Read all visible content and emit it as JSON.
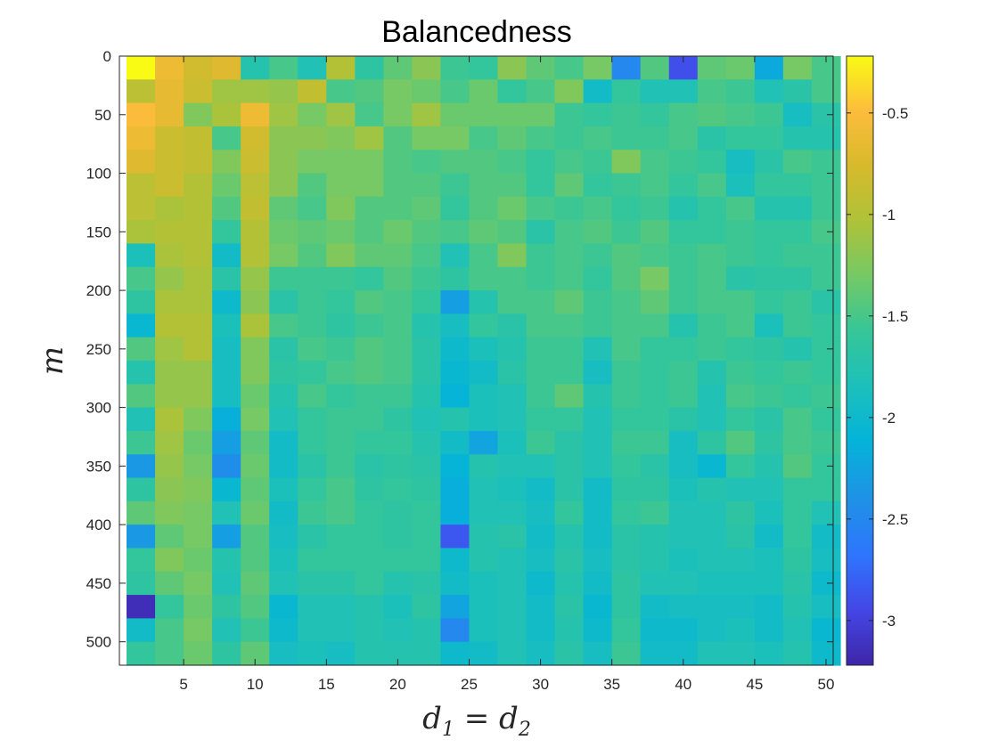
{
  "chart_data": {
    "type": "heatmap",
    "title": "Balancedness",
    "xlabel_main": "d",
    "xlabel_sub1": "1",
    "xlabel_eq": " = ",
    "xlabel_main2": "d",
    "xlabel_sub2": "2",
    "ylabel": "m",
    "x_ticks": [
      5,
      10,
      15,
      20,
      25,
      30,
      35,
      40,
      45,
      50
    ],
    "y_ticks": [
      0,
      50,
      100,
      150,
      200,
      250,
      300,
      350,
      400,
      450,
      500
    ],
    "xlim": [
      0.5,
      50.5
    ],
    "ylim": [
      0,
      520
    ],
    "colorbar": {
      "ticks": [
        -0.5,
        -1,
        -1.5,
        -2,
        -2.5,
        -3
      ],
      "tick_labels": [
        "-0.5",
        "-1",
        "-1.5",
        "-2",
        "-2.5",
        "-3"
      ],
      "clim": [
        -3.22,
        -0.22
      ],
      "colormap": "parula"
    },
    "x_centers": [
      2,
      4,
      6,
      8,
      10,
      12,
      14,
      16,
      18,
      20,
      22,
      24,
      26,
      28,
      30,
      32,
      34,
      36,
      38,
      40,
      42,
      44,
      46,
      48,
      50
    ],
    "y_centers": [
      10,
      30,
      50,
      70,
      90,
      110,
      130,
      150,
      170,
      190,
      210,
      230,
      250,
      270,
      290,
      310,
      330,
      350,
      370,
      390,
      410,
      430,
      450,
      470,
      490,
      510
    ],
    "values": [
      [
        -0.22,
        -0.6,
        -0.8,
        -0.7,
        -1.75,
        -1.5,
        -1.8,
        -1.0,
        -1.65,
        -1.4,
        -1.2,
        -1.55,
        -1.6,
        -1.2,
        -1.4,
        -1.5,
        -1.3,
        -2.5,
        -1.45,
        -2.9,
        -1.4,
        -1.35,
        -2.2,
        -1.3,
        -1.5
      ],
      [
        -0.95,
        -0.65,
        -0.85,
        -1.1,
        -1.1,
        -1.15,
        -0.9,
        -1.5,
        -1.45,
        -1.3,
        -1.35,
        -1.5,
        -1.35,
        -1.6,
        -1.5,
        -1.25,
        -1.95,
        -1.6,
        -1.8,
        -1.8,
        -1.5,
        -1.55,
        -1.8,
        -1.7,
        -1.5
      ],
      [
        -0.5,
        -0.65,
        -1.25,
        -1.05,
        -0.6,
        -1.1,
        -1.3,
        -1.1,
        -1.5,
        -1.3,
        -1.1,
        -1.35,
        -1.35,
        -1.35,
        -1.35,
        -1.55,
        -1.6,
        -1.55,
        -1.6,
        -1.5,
        -1.45,
        -1.5,
        -1.55,
        -1.9,
        -1.7
      ],
      [
        -0.6,
        -0.85,
        -0.9,
        -1.5,
        -0.8,
        -1.2,
        -1.2,
        -1.25,
        -1.1,
        -1.45,
        -1.3,
        -1.3,
        -1.5,
        -1.4,
        -1.5,
        -1.55,
        -1.5,
        -1.55,
        -1.55,
        -1.5,
        -1.7,
        -1.6,
        -1.6,
        -1.75,
        -1.75
      ],
      [
        -0.7,
        -0.85,
        -0.9,
        -1.25,
        -0.85,
        -1.2,
        -1.3,
        -1.3,
        -1.3,
        -1.45,
        -1.5,
        -1.45,
        -1.45,
        -1.5,
        -1.6,
        -1.5,
        -1.55,
        -1.25,
        -1.5,
        -1.55,
        -1.6,
        -1.9,
        -1.7,
        -1.5,
        -1.55
      ],
      [
        -0.95,
        -0.85,
        -1.0,
        -1.35,
        -0.95,
        -1.2,
        -1.45,
        -1.3,
        -1.3,
        -1.45,
        -1.45,
        -1.55,
        -1.45,
        -1.45,
        -1.6,
        -1.4,
        -1.6,
        -1.55,
        -1.5,
        -1.6,
        -1.5,
        -1.85,
        -1.6,
        -1.6,
        -1.55
      ],
      [
        -0.95,
        -1.05,
        -1.0,
        -1.45,
        -0.9,
        -1.4,
        -1.5,
        -1.25,
        -1.45,
        -1.45,
        -1.4,
        -1.6,
        -1.45,
        -1.35,
        -1.5,
        -1.55,
        -1.5,
        -1.6,
        -1.55,
        -1.75,
        -1.6,
        -1.5,
        -1.75,
        -1.75,
        -1.55
      ],
      [
        -1.05,
        -1.0,
        -1.0,
        -1.6,
        -1.0,
        -1.35,
        -1.4,
        -1.35,
        -1.45,
        -1.35,
        -1.45,
        -1.5,
        -1.4,
        -1.45,
        -1.7,
        -1.5,
        -1.45,
        -1.55,
        -1.45,
        -1.6,
        -1.6,
        -1.55,
        -1.6,
        -1.6,
        -1.5
      ],
      [
        -1.85,
        -1.05,
        -1.0,
        -1.95,
        -1.0,
        -1.3,
        -1.45,
        -1.25,
        -1.4,
        -1.4,
        -1.5,
        -1.8,
        -1.5,
        -1.25,
        -1.55,
        -1.5,
        -1.55,
        -1.45,
        -1.5,
        -1.55,
        -1.5,
        -1.55,
        -1.6,
        -1.55,
        -1.55
      ],
      [
        -1.5,
        -1.15,
        -1.05,
        -1.7,
        -1.15,
        -1.55,
        -1.55,
        -1.55,
        -1.6,
        -1.45,
        -1.55,
        -1.65,
        -1.5,
        -1.5,
        -1.55,
        -1.5,
        -1.6,
        -1.45,
        -1.3,
        -1.55,
        -1.5,
        -1.7,
        -1.65,
        -1.65,
        -1.55
      ],
      [
        -1.65,
        -1.05,
        -1.05,
        -2.0,
        -1.2,
        -1.7,
        -1.55,
        -1.6,
        -1.45,
        -1.5,
        -1.6,
        -2.3,
        -1.75,
        -1.5,
        -1.5,
        -1.4,
        -1.55,
        -1.5,
        -1.4,
        -1.55,
        -1.5,
        -1.5,
        -1.6,
        -1.55,
        -1.7
      ],
      [
        -2.05,
        -1.0,
        -1.0,
        -1.85,
        -1.05,
        -1.5,
        -1.55,
        -1.65,
        -1.55,
        -1.5,
        -1.75,
        -1.9,
        -1.6,
        -1.7,
        -1.5,
        -1.5,
        -1.55,
        -1.5,
        -1.5,
        -1.75,
        -1.55,
        -1.5,
        -1.85,
        -1.55,
        -1.6
      ],
      [
        -1.45,
        -1.1,
        -1.0,
        -1.9,
        -1.25,
        -1.7,
        -1.5,
        -1.55,
        -1.45,
        -1.5,
        -1.7,
        -2.0,
        -1.85,
        -1.75,
        -1.55,
        -1.55,
        -1.8,
        -1.5,
        -1.6,
        -1.6,
        -1.55,
        -1.6,
        -1.65,
        -1.75,
        -1.6
      ],
      [
        -1.75,
        -1.15,
        -1.15,
        -1.9,
        -1.25,
        -1.65,
        -1.6,
        -1.5,
        -1.45,
        -1.5,
        -1.7,
        -2.05,
        -1.95,
        -1.7,
        -1.55,
        -1.55,
        -1.9,
        -1.55,
        -1.6,
        -1.55,
        -1.75,
        -1.55,
        -1.6,
        -1.55,
        -1.6
      ],
      [
        -1.45,
        -1.15,
        -1.15,
        -1.9,
        -1.35,
        -1.75,
        -1.5,
        -1.6,
        -1.55,
        -1.55,
        -1.75,
        -2.1,
        -1.85,
        -1.8,
        -1.55,
        -1.4,
        -1.75,
        -1.55,
        -1.6,
        -1.55,
        -1.8,
        -1.5,
        -1.55,
        -1.6,
        -1.55
      ],
      [
        -1.8,
        -1.05,
        -1.25,
        -2.15,
        -1.3,
        -1.8,
        -1.6,
        -1.55,
        -1.55,
        -1.65,
        -1.8,
        -1.75,
        -1.85,
        -1.8,
        -1.6,
        -1.6,
        -1.8,
        -1.6,
        -1.6,
        -1.7,
        -1.8,
        -1.6,
        -1.7,
        -1.5,
        -1.6
      ],
      [
        -1.55,
        -1.1,
        -1.35,
        -2.3,
        -1.4,
        -1.95,
        -1.6,
        -1.55,
        -1.6,
        -1.6,
        -1.75,
        -1.95,
        -2.25,
        -1.85,
        -1.55,
        -1.7,
        -1.8,
        -1.55,
        -1.55,
        -1.9,
        -1.65,
        -1.45,
        -1.65,
        -1.5,
        -1.55
      ],
      [
        -2.35,
        -1.15,
        -1.3,
        -2.45,
        -1.35,
        -1.95,
        -1.7,
        -1.55,
        -1.7,
        -1.65,
        -1.7,
        -2.1,
        -1.75,
        -1.8,
        -1.8,
        -1.7,
        -1.8,
        -1.6,
        -1.7,
        -1.9,
        -2.05,
        -1.6,
        -1.75,
        -1.45,
        -1.6
      ],
      [
        -1.65,
        -1.2,
        -1.25,
        -2.05,
        -1.4,
        -1.85,
        -1.6,
        -1.5,
        -1.65,
        -1.6,
        -1.65,
        -2.15,
        -1.8,
        -1.85,
        -1.95,
        -1.7,
        -1.95,
        -1.65,
        -1.65,
        -1.85,
        -1.75,
        -1.8,
        -1.8,
        -1.6,
        -1.6
      ],
      [
        -1.4,
        -1.25,
        -1.3,
        -1.8,
        -1.35,
        -1.95,
        -1.55,
        -1.5,
        -1.6,
        -1.65,
        -1.6,
        -2.15,
        -1.8,
        -1.8,
        -1.9,
        -1.6,
        -1.95,
        -1.6,
        -1.55,
        -1.8,
        -1.8,
        -1.65,
        -1.85,
        -1.6,
        -1.8
      ],
      [
        -2.35,
        -1.4,
        -1.3,
        -2.3,
        -1.45,
        -1.9,
        -1.7,
        -1.6,
        -1.6,
        -1.65,
        -1.6,
        -2.85,
        -1.75,
        -1.7,
        -1.95,
        -1.75,
        -1.95,
        -1.7,
        -1.75,
        -1.8,
        -1.8,
        -1.7,
        -1.95,
        -1.6,
        -1.95
      ],
      [
        -1.6,
        -1.25,
        -1.35,
        -1.75,
        -1.45,
        -1.85,
        -1.6,
        -1.6,
        -1.6,
        -1.6,
        -1.6,
        -2.0,
        -1.75,
        -1.8,
        -1.9,
        -1.7,
        -1.9,
        -1.7,
        -1.75,
        -1.85,
        -1.8,
        -1.8,
        -1.85,
        -1.65,
        -1.9
      ],
      [
        -1.65,
        -1.4,
        -1.3,
        -1.8,
        -1.4,
        -1.8,
        -1.7,
        -1.7,
        -1.6,
        -1.75,
        -1.7,
        -1.95,
        -1.85,
        -1.8,
        -2.0,
        -1.75,
        -1.95,
        -1.65,
        -1.8,
        -1.8,
        -1.85,
        -1.85,
        -1.85,
        -1.7,
        -2.0
      ],
      [
        -3.15,
        -1.6,
        -1.35,
        -1.65,
        -1.45,
        -2.05,
        -1.8,
        -1.8,
        -1.75,
        -1.85,
        -1.65,
        -2.25,
        -1.85,
        -1.8,
        -1.95,
        -1.7,
        -2.05,
        -1.65,
        -1.95,
        -1.9,
        -1.9,
        -1.9,
        -1.95,
        -1.75,
        -1.9
      ],
      [
        -1.95,
        -1.5,
        -1.3,
        -1.8,
        -1.55,
        -2.0,
        -1.8,
        -1.8,
        -1.75,
        -1.8,
        -1.75,
        -2.5,
        -1.85,
        -1.8,
        -1.95,
        -1.75,
        -2.0,
        -1.6,
        -2.0,
        -2.0,
        -1.9,
        -1.85,
        -1.95,
        -1.8,
        -2.05
      ],
      [
        -1.6,
        -1.5,
        -1.35,
        -1.65,
        -1.4,
        -1.9,
        -1.85,
        -1.9,
        -1.75,
        -1.75,
        -1.75,
        -2.0,
        -1.95,
        -1.8,
        -1.9,
        -1.7,
        -1.9,
        -1.55,
        -1.95,
        -1.95,
        -1.8,
        -1.8,
        -1.85,
        -1.75,
        -2.0
      ]
    ]
  }
}
